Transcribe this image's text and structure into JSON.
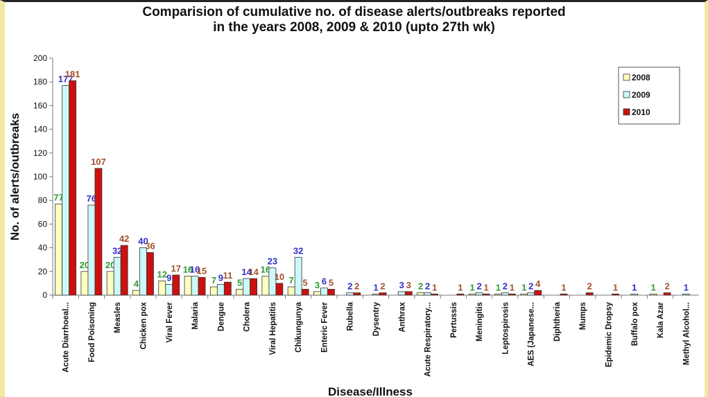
{
  "chart_data": {
    "type": "bar",
    "title_line1": "Comparision of cumulative no. of disease alerts/outbreaks reported",
    "title_line2": "in the years 2008, 2009 & 2010 (upto 27th wk)",
    "xlabel": "Disease/Illness",
    "ylabel": "No. of alerts/outbreaks",
    "ylim": [
      0,
      200
    ],
    "yticks": [
      0,
      20,
      40,
      60,
      80,
      100,
      120,
      140,
      160,
      180,
      200
    ],
    "grid": false,
    "legend_position": "top-right",
    "categories": [
      "Acute Diarrhoeal...",
      "Food Poisoning",
      "Measles",
      "Chicken pox",
      "Viral Fever",
      "Malaria",
      "Dengue",
      "Cholera",
      "Viral Hepatitis",
      "Chikungunya",
      "Enteric Fever",
      "Rubella",
      "Dysentry",
      "Anthrax",
      "Acute Respiratory...",
      "Pertussis",
      "Meningitis",
      "Leptospirosis",
      "AES (Japanese...",
      "Diphtheria",
      "Mumps",
      "Epidemic Dropsy",
      "Buffalo pox",
      "Kala Azar",
      "Methyl Alcohol..."
    ],
    "series": [
      {
        "name": "2008",
        "color": "#ffffc0",
        "label_color": "#2e9a2e",
        "values": [
          77,
          20,
          20,
          4,
          12,
          16,
          7,
          5,
          16,
          7,
          3,
          null,
          null,
          null,
          2,
          null,
          1,
          1,
          1,
          null,
          null,
          null,
          null,
          1,
          null
        ],
        "labels": [
          "77",
          "20",
          "20",
          "4",
          "12",
          "16",
          "7",
          "5",
          "16",
          "7",
          "3",
          "",
          "",
          "",
          "2",
          "",
          "1",
          "1",
          "1",
          "",
          "",
          "",
          "",
          "1",
          ""
        ]
      },
      {
        "name": "2009",
        "color": "#ccf8f8",
        "label_color": "#2f2fc8",
        "values": [
          177,
          76,
          32,
          40,
          9,
          16,
          9,
          14,
          23,
          32,
          6,
          2,
          1,
          3,
          2,
          null,
          2,
          2,
          2,
          null,
          null,
          null,
          1,
          null,
          1
        ],
        "labels": [
          "177",
          "76",
          "32",
          "40",
          "9",
          "16",
          "9",
          "14",
          "23",
          "32",
          "6",
          "2",
          "1",
          "3",
          "2",
          "",
          "2",
          "2",
          "2",
          "",
          "",
          "",
          "1",
          "",
          "1"
        ]
      },
      {
        "name": "2010",
        "color": "#cc1010",
        "label_color": "#a0522d",
        "values": [
          181,
          107,
          42,
          36,
          17,
          15,
          11,
          14,
          10,
          5,
          5,
          2,
          2,
          3,
          1,
          1,
          1,
          1,
          4,
          1,
          2,
          1,
          null,
          2,
          null
        ],
        "labels": [
          "181",
          "107",
          "42",
          "36",
          "17",
          "15",
          "11",
          "14",
          "10",
          "5",
          "5",
          "2",
          "2",
          "3",
          "1",
          "1",
          "1",
          "1",
          "4",
          "1",
          "2",
          "1",
          "",
          "2",
          ""
        ]
      }
    ]
  }
}
